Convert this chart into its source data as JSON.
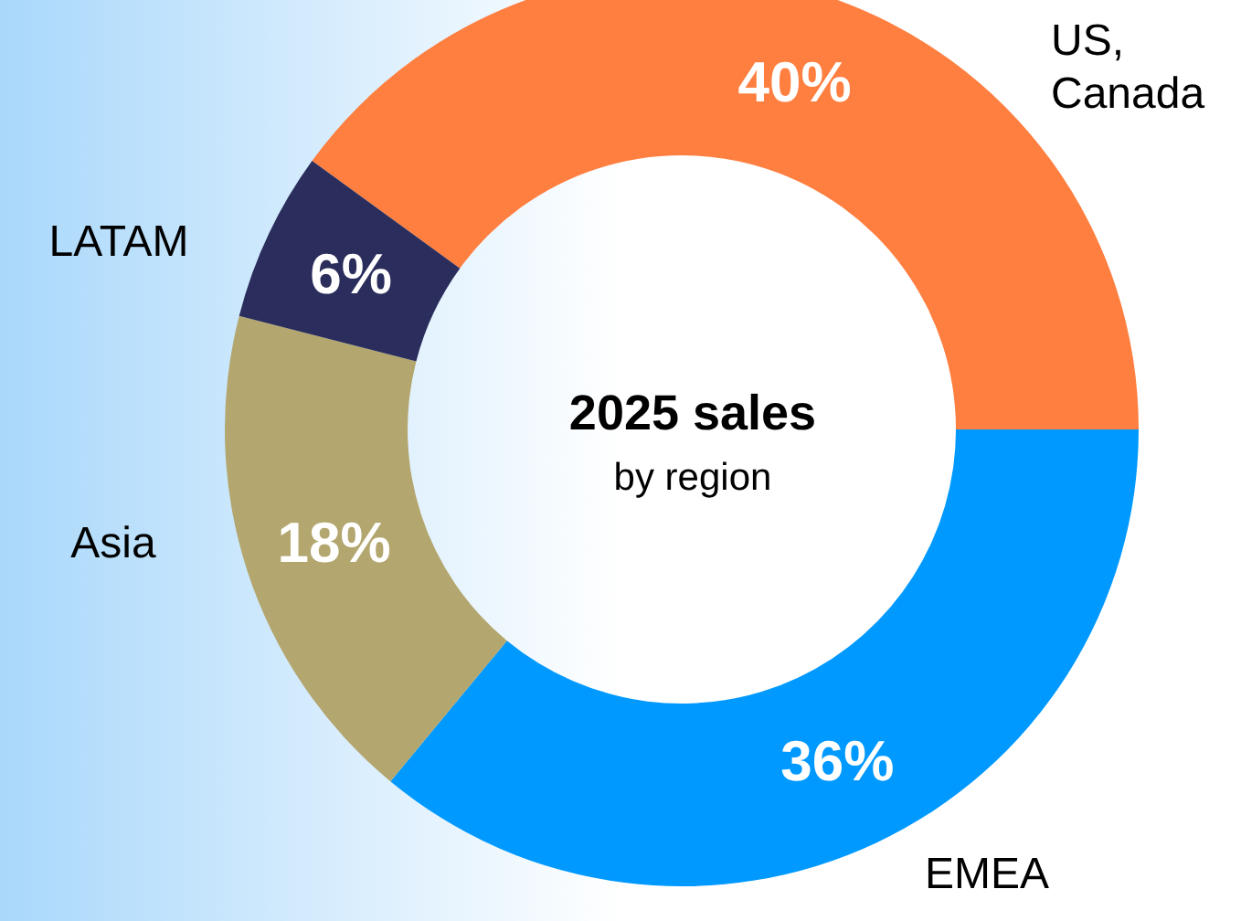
{
  "chart_data": {
    "type": "donut",
    "title": "2025 sales",
    "subtitle": "by region",
    "categories": [
      "US, Canada",
      "EMEA",
      "Asia",
      "LATAM"
    ],
    "values": [
      40,
      36,
      18,
      6
    ],
    "colors": [
      "#ff7f40",
      "#0099ff",
      "#b3a66e",
      "#2b2d5c"
    ],
    "value_labels": [
      "40%",
      "36%",
      "18%",
      "6%"
    ]
  }
}
